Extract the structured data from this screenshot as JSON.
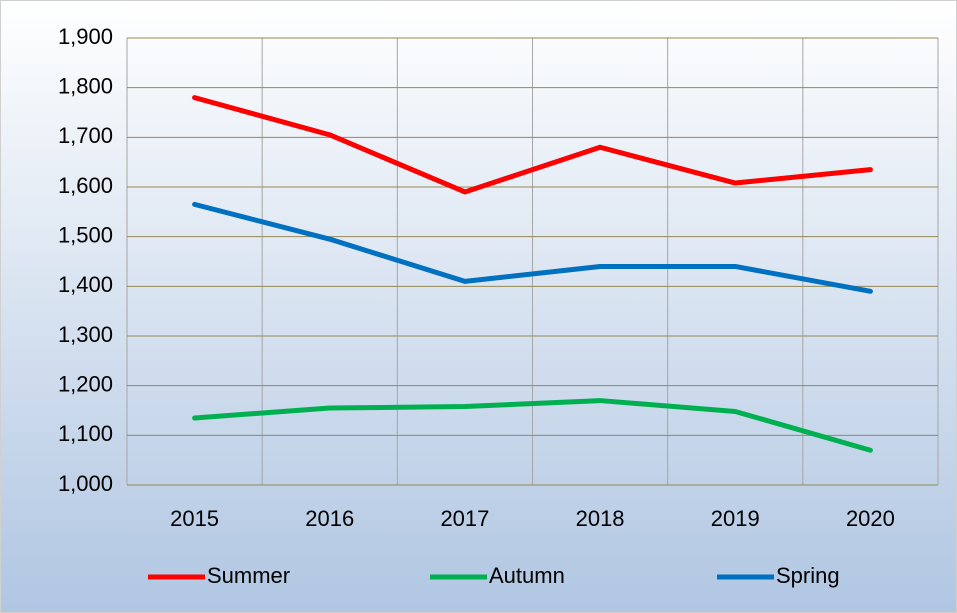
{
  "chart_data": {
    "type": "line",
    "categories": [
      "2015",
      "2016",
      "2017",
      "2018",
      "2019",
      "2020"
    ],
    "series": [
      {
        "name": "Summer",
        "color": "#ff0000",
        "values": [
          1780,
          1705,
          1590,
          1680,
          1608,
          1635
        ]
      },
      {
        "name": "Autumn",
        "color": "#00b050",
        "values": [
          1135,
          1155,
          1158,
          1170,
          1148,
          1070
        ]
      },
      {
        "name": "Spring",
        "color": "#0070c0",
        "values": [
          1565,
          1495,
          1410,
          1440,
          1440,
          1390
        ]
      }
    ],
    "ylim": [
      1000,
      1900
    ],
    "yticks": [
      {
        "value": 1000,
        "label": "1,000"
      },
      {
        "value": 1100,
        "label": "1,100"
      },
      {
        "value": 1200,
        "label": "1,200"
      },
      {
        "value": 1300,
        "label": "1,300"
      },
      {
        "value": 1400,
        "label": "1,400"
      },
      {
        "value": 1500,
        "label": "1,500"
      },
      {
        "value": 1600,
        "label": "1,600"
      },
      {
        "value": 1700,
        "label": "1,700"
      },
      {
        "value": 1800,
        "label": "1,800"
      },
      {
        "value": 1900,
        "label": "1,900"
      }
    ],
    "grid": true,
    "legend": "bottom"
  }
}
